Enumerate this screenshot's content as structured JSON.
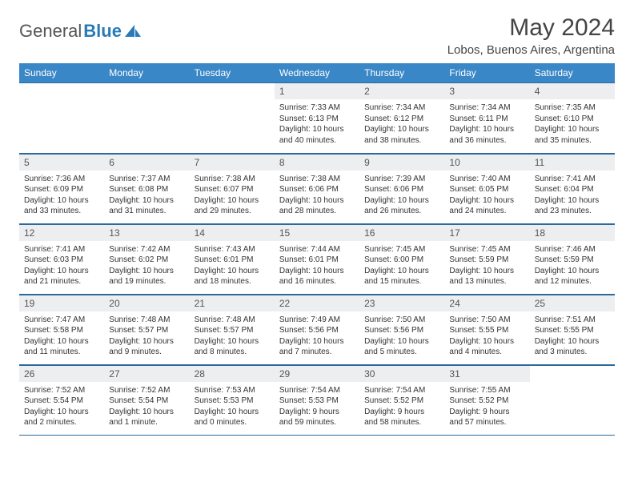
{
  "brand": {
    "part1": "General",
    "part2": "Blue"
  },
  "title": "May 2024",
  "location": "Lobos, Buenos Aires, Argentina",
  "colors": {
    "header_bg": "#3a87c7",
    "border": "#2a6a9e",
    "daynum_bg": "#eceef0",
    "brand_blue": "#2a7ab8"
  },
  "weekdays": [
    "Sunday",
    "Monday",
    "Tuesday",
    "Wednesday",
    "Thursday",
    "Friday",
    "Saturday"
  ],
  "weeks": [
    [
      null,
      null,
      null,
      {
        "n": "1",
        "sr": "7:33 AM",
        "ss": "6:13 PM",
        "dl": "10 hours and 40 minutes."
      },
      {
        "n": "2",
        "sr": "7:34 AM",
        "ss": "6:12 PM",
        "dl": "10 hours and 38 minutes."
      },
      {
        "n": "3",
        "sr": "7:34 AM",
        "ss": "6:11 PM",
        "dl": "10 hours and 36 minutes."
      },
      {
        "n": "4",
        "sr": "7:35 AM",
        "ss": "6:10 PM",
        "dl": "10 hours and 35 minutes."
      }
    ],
    [
      {
        "n": "5",
        "sr": "7:36 AM",
        "ss": "6:09 PM",
        "dl": "10 hours and 33 minutes."
      },
      {
        "n": "6",
        "sr": "7:37 AM",
        "ss": "6:08 PM",
        "dl": "10 hours and 31 minutes."
      },
      {
        "n": "7",
        "sr": "7:38 AM",
        "ss": "6:07 PM",
        "dl": "10 hours and 29 minutes."
      },
      {
        "n": "8",
        "sr": "7:38 AM",
        "ss": "6:06 PM",
        "dl": "10 hours and 28 minutes."
      },
      {
        "n": "9",
        "sr": "7:39 AM",
        "ss": "6:06 PM",
        "dl": "10 hours and 26 minutes."
      },
      {
        "n": "10",
        "sr": "7:40 AM",
        "ss": "6:05 PM",
        "dl": "10 hours and 24 minutes."
      },
      {
        "n": "11",
        "sr": "7:41 AM",
        "ss": "6:04 PM",
        "dl": "10 hours and 23 minutes."
      }
    ],
    [
      {
        "n": "12",
        "sr": "7:41 AM",
        "ss": "6:03 PM",
        "dl": "10 hours and 21 minutes."
      },
      {
        "n": "13",
        "sr": "7:42 AM",
        "ss": "6:02 PM",
        "dl": "10 hours and 19 minutes."
      },
      {
        "n": "14",
        "sr": "7:43 AM",
        "ss": "6:01 PM",
        "dl": "10 hours and 18 minutes."
      },
      {
        "n": "15",
        "sr": "7:44 AM",
        "ss": "6:01 PM",
        "dl": "10 hours and 16 minutes."
      },
      {
        "n": "16",
        "sr": "7:45 AM",
        "ss": "6:00 PM",
        "dl": "10 hours and 15 minutes."
      },
      {
        "n": "17",
        "sr": "7:45 AM",
        "ss": "5:59 PM",
        "dl": "10 hours and 13 minutes."
      },
      {
        "n": "18",
        "sr": "7:46 AM",
        "ss": "5:59 PM",
        "dl": "10 hours and 12 minutes."
      }
    ],
    [
      {
        "n": "19",
        "sr": "7:47 AM",
        "ss": "5:58 PM",
        "dl": "10 hours and 11 minutes."
      },
      {
        "n": "20",
        "sr": "7:48 AM",
        "ss": "5:57 PM",
        "dl": "10 hours and 9 minutes."
      },
      {
        "n": "21",
        "sr": "7:48 AM",
        "ss": "5:57 PM",
        "dl": "10 hours and 8 minutes."
      },
      {
        "n": "22",
        "sr": "7:49 AM",
        "ss": "5:56 PM",
        "dl": "10 hours and 7 minutes."
      },
      {
        "n": "23",
        "sr": "7:50 AM",
        "ss": "5:56 PM",
        "dl": "10 hours and 5 minutes."
      },
      {
        "n": "24",
        "sr": "7:50 AM",
        "ss": "5:55 PM",
        "dl": "10 hours and 4 minutes."
      },
      {
        "n": "25",
        "sr": "7:51 AM",
        "ss": "5:55 PM",
        "dl": "10 hours and 3 minutes."
      }
    ],
    [
      {
        "n": "26",
        "sr": "7:52 AM",
        "ss": "5:54 PM",
        "dl": "10 hours and 2 minutes."
      },
      {
        "n": "27",
        "sr": "7:52 AM",
        "ss": "5:54 PM",
        "dl": "10 hours and 1 minute."
      },
      {
        "n": "28",
        "sr": "7:53 AM",
        "ss": "5:53 PM",
        "dl": "10 hours and 0 minutes."
      },
      {
        "n": "29",
        "sr": "7:54 AM",
        "ss": "5:53 PM",
        "dl": "9 hours and 59 minutes."
      },
      {
        "n": "30",
        "sr": "7:54 AM",
        "ss": "5:52 PM",
        "dl": "9 hours and 58 minutes."
      },
      {
        "n": "31",
        "sr": "7:55 AM",
        "ss": "5:52 PM",
        "dl": "9 hours and 57 minutes."
      },
      null
    ]
  ],
  "labels": {
    "sunrise": "Sunrise:",
    "sunset": "Sunset:",
    "daylight": "Daylight:"
  }
}
